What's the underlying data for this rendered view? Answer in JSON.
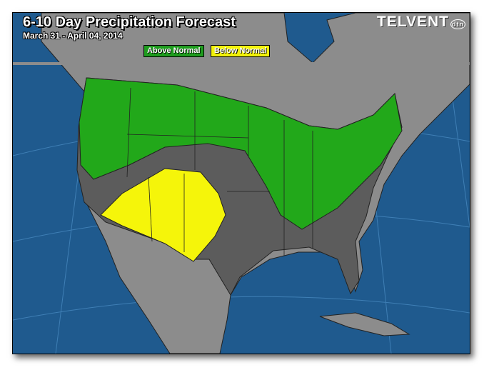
{
  "header": {
    "title": "6-10 Day Precipitation Forecast",
    "date_range": "March 31 - April 04, 2014",
    "logo": "TELVENT dtn"
  },
  "legend": [
    {
      "label": "Above Normal",
      "color": "#22a81a"
    },
    {
      "label": "Below Normal",
      "color": "#f5f50a"
    }
  ],
  "colors": {
    "ocean": "#1f5a8e",
    "land": "#8c8c8c",
    "normal": "#5c5c5c"
  }
}
